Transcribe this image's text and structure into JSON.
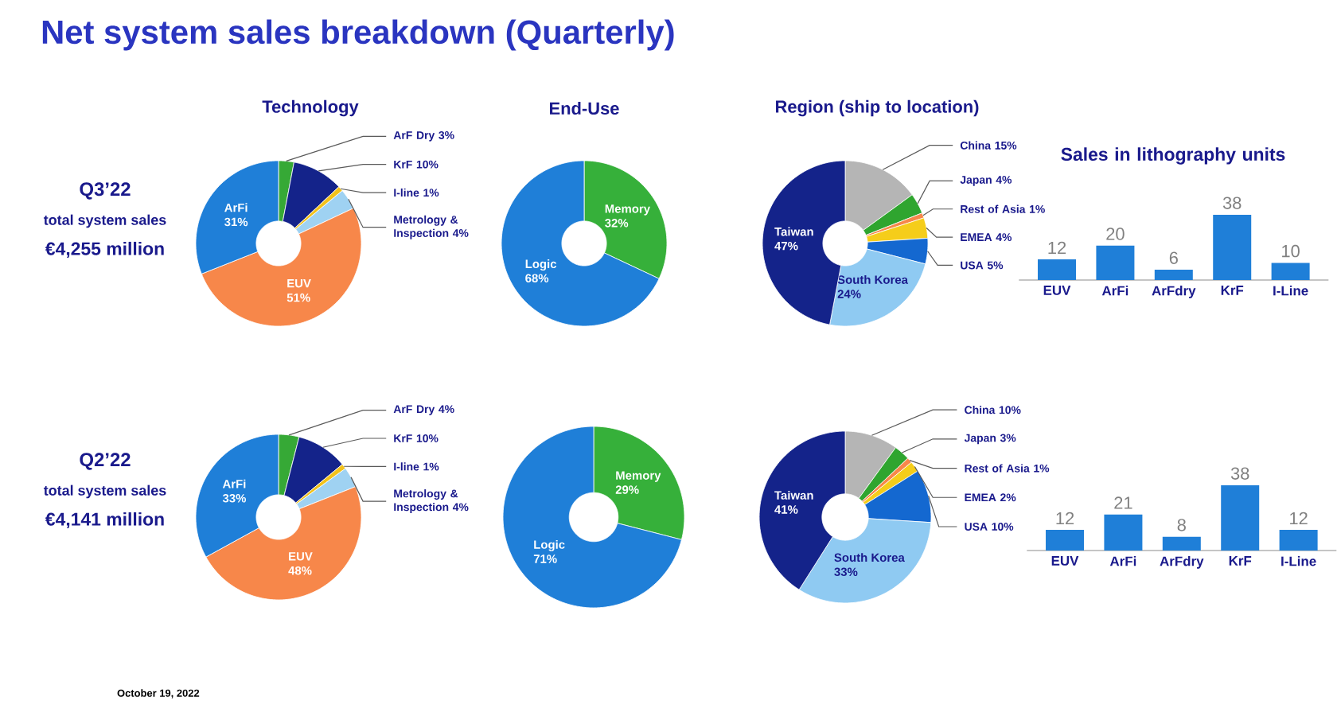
{
  "chart_data": [
    {
      "type": "other",
      "title": "Net system sales breakdown (Quarterly)",
      "annotations": [
        "Q3’22",
        "total system sales",
        "€4,255 million",
        "Q2’22",
        "total system sales",
        "€4,141 million",
        "October 19, 2022"
      ]
    },
    {
      "type": "donut",
      "title": "Technology",
      "categories": [
        "ArF Dry",
        "KrF",
        "I-line",
        "Metrology & Inspection",
        "EUV",
        "ArFi"
      ],
      "values": [
        3,
        10,
        1,
        4,
        51,
        31
      ],
      "value_labels": [
        "3%",
        "10%",
        "1%",
        "4%",
        "51%",
        "31%"
      ],
      "colors": [
        "#36a936",
        "#14238a",
        "#f2c21b",
        "#9fd2f2",
        "#f7874a",
        "#1f7fd8"
      ]
    },
    {
      "type": "donut",
      "title": "End-Use",
      "categories": [
        "Memory",
        "Logic"
      ],
      "values": [
        32,
        68
      ],
      "value_labels": [
        "32%",
        "68%"
      ],
      "colors": [
        "#36b03a",
        "#1f7fd8"
      ]
    },
    {
      "type": "donut",
      "title": "Region (ship to location)",
      "categories": [
        "China",
        "Japan",
        "Rest of Asia",
        "EMEA",
        "USA",
        "South Korea",
        "Taiwan"
      ],
      "values": [
        15,
        4,
        1,
        4,
        5,
        24,
        47
      ],
      "value_labels": [
        "15%",
        "4%",
        "1%",
        "4%",
        "5%",
        "24%",
        "47%"
      ],
      "colors": [
        "#b5b5b5",
        "#2fa52f",
        "#f7874a",
        "#f5cd1a",
        "#1468d0",
        "#8fcaf2",
        "#14238a"
      ]
    },
    {
      "type": "bar",
      "title": "Sales in lithography units",
      "categories": [
        "EUV",
        "ArFi",
        "ArFdry",
        "KrF",
        "I-Line"
      ],
      "values": [
        12,
        20,
        6,
        38,
        10
      ],
      "color": "#1f7fd8",
      "data_labels": true
    },
    {
      "type": "donut",
      "categories": [
        "ArF Dry",
        "KrF",
        "I-line",
        "Metrology & Inspection",
        "EUV",
        "ArFi"
      ],
      "values": [
        4,
        10,
        1,
        4,
        48,
        33
      ],
      "value_labels": [
        "4%",
        "10%",
        "1%",
        "4%",
        "48%",
        "33%"
      ],
      "colors": [
        "#36a936",
        "#14238a",
        "#f2c21b",
        "#9fd2f2",
        "#f7874a",
        "#1f7fd8"
      ]
    },
    {
      "type": "donut",
      "categories": [
        "Memory",
        "Logic"
      ],
      "values": [
        29,
        71
      ],
      "value_labels": [
        "29%",
        "71%"
      ],
      "colors": [
        "#36b03a",
        "#1f7fd8"
      ]
    },
    {
      "type": "donut",
      "categories": [
        "China",
        "Japan",
        "Rest of Asia",
        "EMEA",
        "USA",
        "South Korea",
        "Taiwan"
      ],
      "values": [
        10,
        3,
        1,
        2,
        10,
        33,
        41
      ],
      "value_labels": [
        "10%",
        "3%",
        "1%",
        "2%",
        "10%",
        "33%",
        "41%"
      ],
      "colors": [
        "#b5b5b5",
        "#2fa52f",
        "#f7874a",
        "#f5cd1a",
        "#1468d0",
        "#8fcaf2",
        "#14238a"
      ]
    },
    {
      "type": "bar",
      "categories": [
        "EUV",
        "ArFi",
        "ArFdry",
        "KrF",
        "I-Line"
      ],
      "values": [
        12,
        21,
        8,
        38,
        12
      ],
      "color": "#1f7fd8",
      "data_labels": true
    }
  ]
}
